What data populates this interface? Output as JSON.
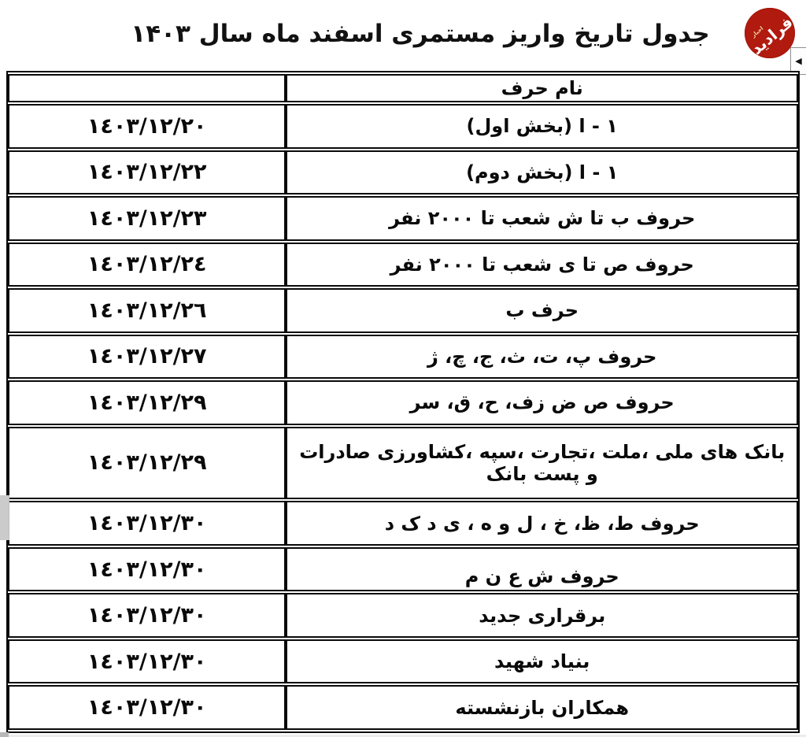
{
  "title": "جدول تاریخ واریز مستمری اسفند ماه سال ۱۴۰۳",
  "logo": {
    "name": "فرادید",
    "tagline": "اخبار",
    "color": "#b11a0f"
  },
  "scroll_button": {
    "arrow": "◀"
  },
  "table": {
    "header": {
      "name": "نام حرف",
      "date": ""
    },
    "rows": [
      {
        "date": "١٤٠٣/١٢/٢٠",
        "name": "۱ - ا (بخش اول)"
      },
      {
        "date": "١٤٠٣/١٢/٢٢",
        "name": "۱ - ا (بخش دوم)"
      },
      {
        "date": "١٤٠٣/١٢/٢٣",
        "name": "حروف ب تا ش شعب تا ٢٠٠٠ نفر"
      },
      {
        "date": "١٤٠٣/١٢/٢٤",
        "name": "حروف ص تا ی شعب تا ٢٠٠٠ نفر"
      },
      {
        "date": "١٤٠٣/١٢/٢٦",
        "name": "حرف ب"
      },
      {
        "date": "١٤٠٣/١٢/٢٧",
        "name": "حروف پ، ت، ث، ج، چ، ژ"
      },
      {
        "date": "١٤٠٣/١٢/٢٩",
        "name": "حروف ص ض زف، ح، ق، سر"
      },
      {
        "date": "١٤٠٣/١٢/٢٩",
        "name": "بانک های ملی ،ملت ،تجارت ،سپه ،کشاورزی صادرات و پست بانک"
      },
      {
        "date": "١٤٠٣/١٢/٣٠",
        "name": "حروف ط، ظ، خ ، ل و ه ، ی د ک د"
      },
      {
        "date": "١٤٠٣/١٢/٣٠",
        "name": "حروف ش ع ن م"
      },
      {
        "date": "١٤٠٣/١٢/٣٠",
        "name": "برقراری جدید"
      },
      {
        "date": "١٤٠٣/١٢/٣٠",
        "name": "بنیاد شهید"
      },
      {
        "date": "١٤٠٣/١٢/٣٠",
        "name": "همکاران بازنشسته"
      }
    ]
  }
}
